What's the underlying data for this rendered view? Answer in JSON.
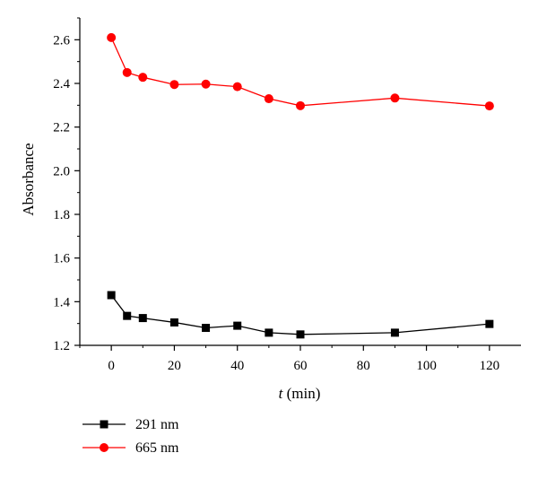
{
  "chart_data": {
    "type": "line",
    "title": "",
    "xlabel_var": "t",
    "xlabel_unit": " (min)",
    "ylabel": "Absorbance",
    "xlim": [
      -10,
      130
    ],
    "ylim": [
      1.2,
      2.7
    ],
    "xticks": [
      0,
      20,
      40,
      60,
      80,
      100,
      120
    ],
    "yticks": [
      1.2,
      1.4,
      1.6,
      1.8,
      2.0,
      2.2,
      2.4,
      2.6
    ],
    "xtick_labels": [
      "0",
      "20",
      "40",
      "60",
      "80",
      "100",
      "120"
    ],
    "ytick_labels": [
      "1.2",
      "1.4",
      "1.6",
      "1.8",
      "2.0",
      "2.2",
      "2.4",
      "2.6"
    ],
    "grid": false,
    "legend_position": "bottom-left, below plot",
    "series": [
      {
        "name": "291 nm",
        "color": "#000000",
        "marker": "square",
        "x": [
          0,
          5,
          10,
          20,
          30,
          40,
          50,
          60,
          90,
          120
        ],
        "y": [
          1.43,
          1.335,
          1.325,
          1.305,
          1.28,
          1.29,
          1.258,
          1.25,
          1.258,
          1.298
        ]
      },
      {
        "name": "665 nm",
        "color": "#ff0000",
        "marker": "circle",
        "x": [
          0,
          5,
          10,
          20,
          30,
          40,
          50,
          60,
          90,
          120
        ],
        "y": [
          2.61,
          2.45,
          2.428,
          2.395,
          2.397,
          2.385,
          2.33,
          2.298,
          2.333,
          2.297
        ]
      }
    ]
  }
}
